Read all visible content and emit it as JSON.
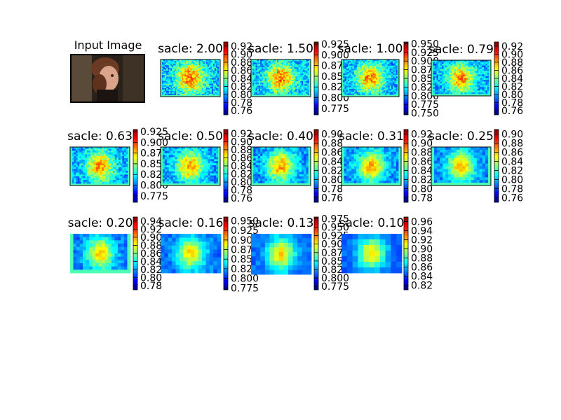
{
  "chart_data": {
    "type": "heatmap",
    "layout": "grid",
    "input_panel": {
      "title": "Input Image"
    },
    "panels": [
      {
        "title": "sacle: 2.00",
        "clim": [
          0.75,
          0.93
        ],
        "ticks": [
          "0.92",
          "0.90",
          "0.88",
          "0.86",
          "0.84",
          "0.82",
          "0.80",
          "0.78",
          "0.76"
        ]
      },
      {
        "title": "sacle: 1.50",
        "clim": [
          0.76,
          0.93
        ],
        "ticks": [
          "0.925",
          "0.900",
          "0.875",
          "0.850",
          "0.825",
          "0.800",
          "0.775"
        ]
      },
      {
        "title": "sacle: 1.00",
        "clim": [
          0.745,
          0.955
        ],
        "ticks": [
          "0.950",
          "0.925",
          "0.900",
          "0.875",
          "0.850",
          "0.825",
          "0.800",
          "0.775",
          "0.750"
        ]
      },
      {
        "title": "sacle: 0.79",
        "clim": [
          0.75,
          0.93
        ],
        "ticks": [
          "0.92",
          "0.90",
          "0.88",
          "0.86",
          "0.84",
          "0.82",
          "0.80",
          "0.78",
          "0.76"
        ]
      },
      {
        "title": "sacle: 0.63",
        "clim": [
          0.76,
          0.93
        ],
        "ticks": [
          "0.925",
          "0.900",
          "0.875",
          "0.850",
          "0.825",
          "0.800",
          "0.775"
        ]
      },
      {
        "title": "sacle: 0.50",
        "clim": [
          0.75,
          0.93
        ],
        "ticks": [
          "0.92",
          "0.90",
          "0.88",
          "0.86",
          "0.84",
          "0.82",
          "0.80",
          "0.78",
          "0.76"
        ]
      },
      {
        "title": "sacle: 0.40",
        "clim": [
          0.75,
          0.91
        ],
        "ticks": [
          "0.90",
          "0.88",
          "0.86",
          "0.84",
          "0.82",
          "0.80",
          "0.78",
          "0.76"
        ]
      },
      {
        "title": "sacle: 0.31",
        "clim": [
          0.77,
          0.93
        ],
        "ticks": [
          "0.92",
          "0.90",
          "0.88",
          "0.86",
          "0.84",
          "0.82",
          "0.80",
          "0.78"
        ]
      },
      {
        "title": "sacle: 0.25",
        "clim": [
          0.75,
          0.91
        ],
        "ticks": [
          "0.90",
          "0.88",
          "0.86",
          "0.84",
          "0.82",
          "0.80",
          "0.78",
          "0.76"
        ]
      },
      {
        "title": "sacle: 0.20",
        "clim": [
          0.77,
          0.95
        ],
        "ticks": [
          "0.94",
          "0.92",
          "0.90",
          "0.88",
          "0.86",
          "0.84",
          "0.82",
          "0.80",
          "0.78"
        ]
      },
      {
        "title": "sacle: 0.16",
        "clim": [
          0.77,
          0.96
        ],
        "ticks": [
          "0.950",
          "0.925",
          "0.900",
          "0.875",
          "0.850",
          "0.825",
          "0.800",
          "0.775"
        ]
      },
      {
        "title": "sacle: 0.13",
        "clim": [
          0.765,
          0.98
        ],
        "ticks": [
          "0.975",
          "0.950",
          "0.925",
          "0.900",
          "0.875",
          "0.850",
          "0.825",
          "0.800",
          "0.775"
        ]
      },
      {
        "title": "sacle: 0.10",
        "clim": [
          0.81,
          0.97
        ],
        "ticks": [
          "0.96",
          "0.94",
          "0.92",
          "0.90",
          "0.88",
          "0.86",
          "0.84",
          "0.82"
        ]
      }
    ]
  }
}
